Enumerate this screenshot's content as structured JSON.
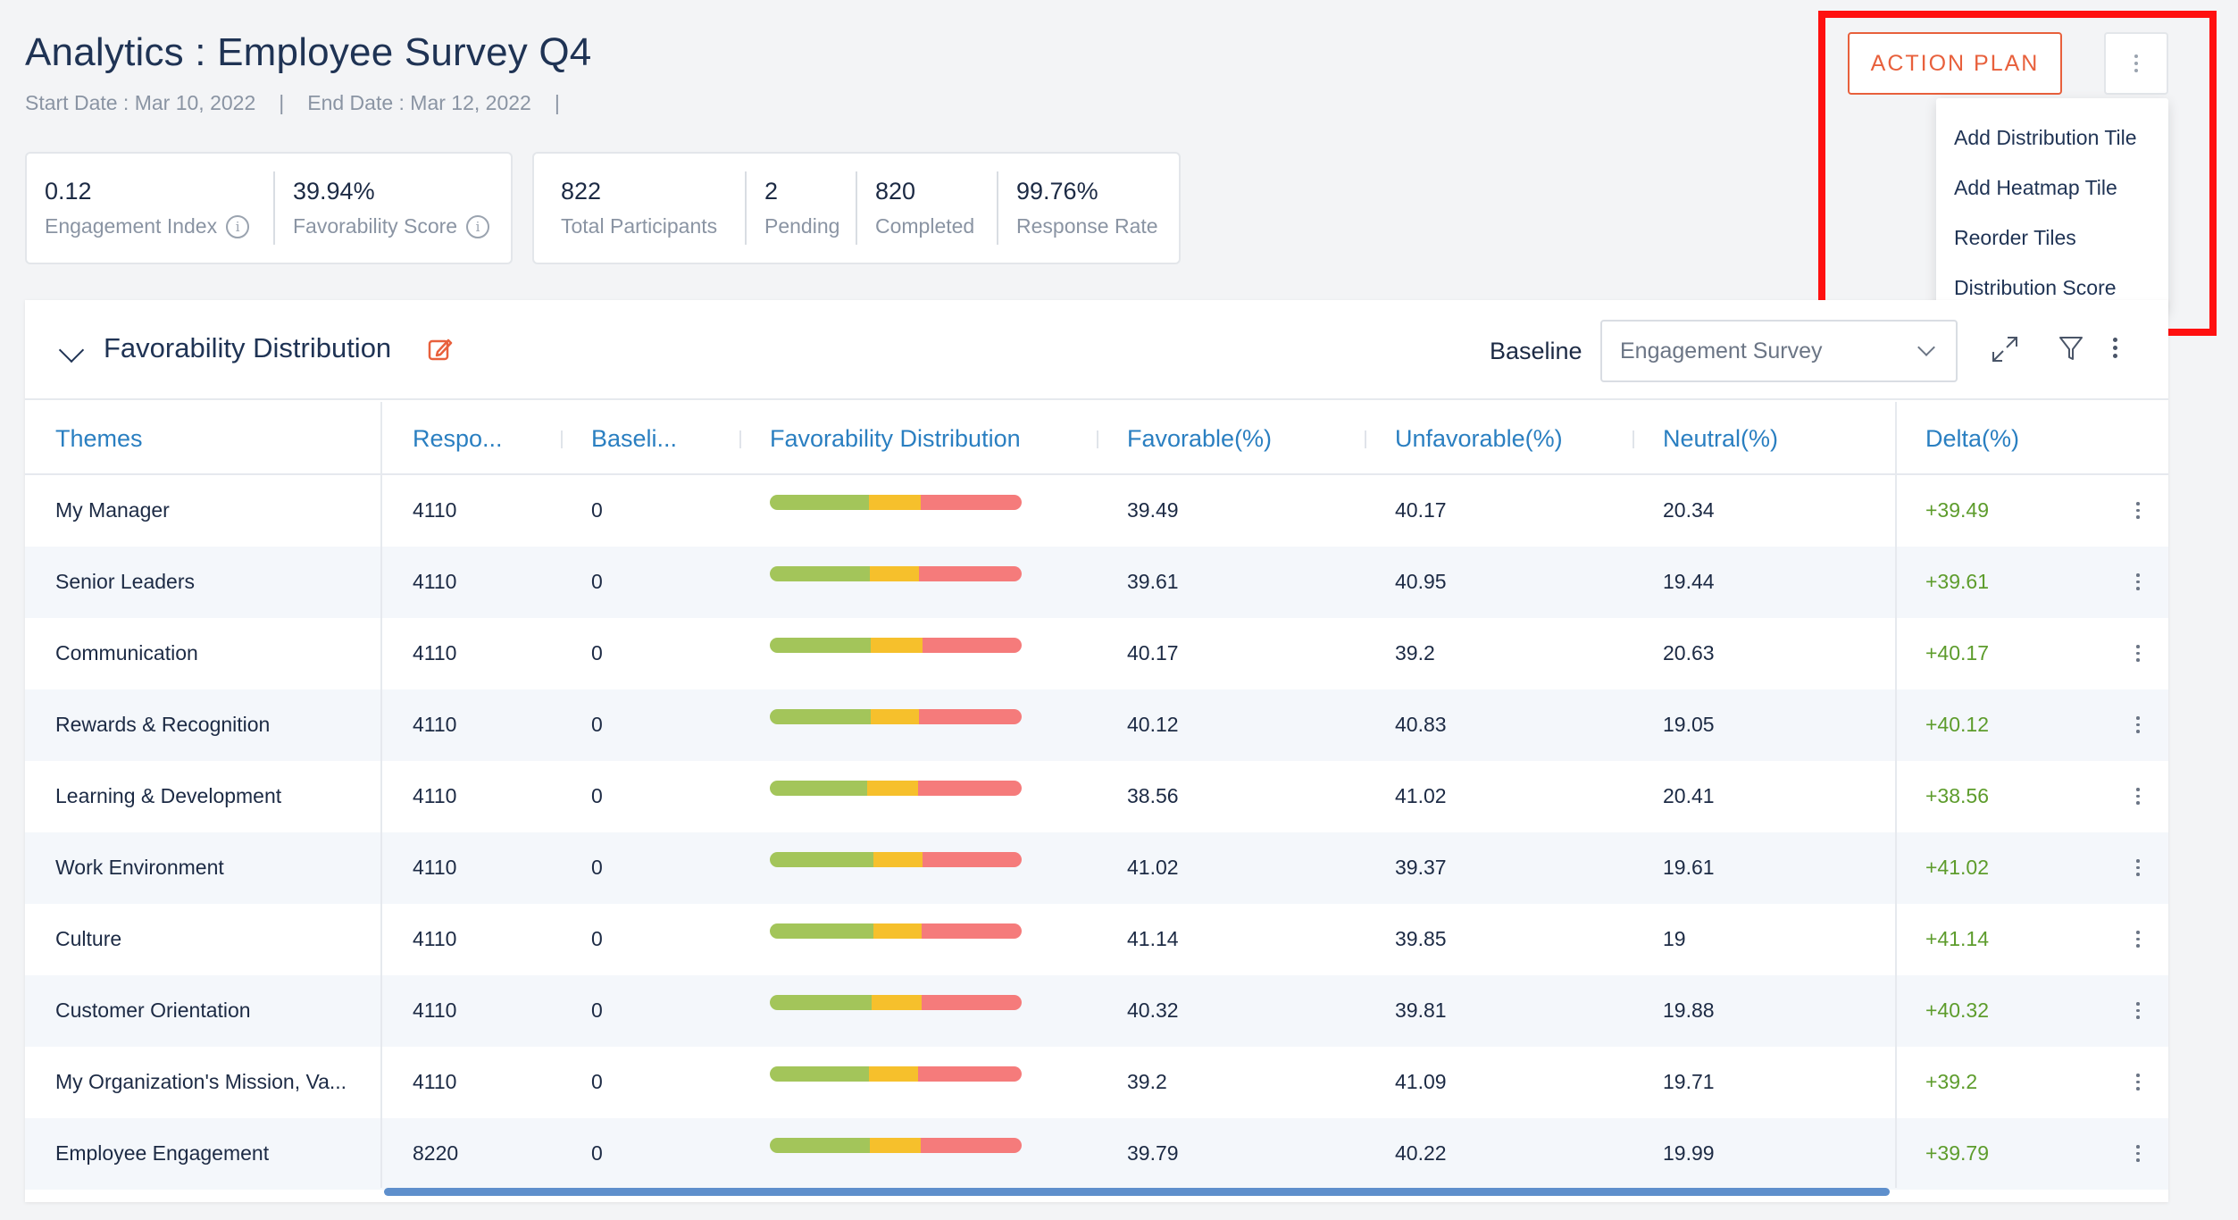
{
  "header": {
    "title": "Analytics : Employee Survey Q4",
    "start_date": "Start Date : Mar 10, 2022",
    "end_date": "End Date : Mar 12, 2022",
    "separator": "|"
  },
  "engagement_card": {
    "engagement_index_value": "0.12",
    "engagement_index_label": "Engagement Index",
    "favorability_score_value": "39.94%",
    "favorability_score_label": "Favorability Score"
  },
  "participation_card": {
    "total_participants_value": "822",
    "total_participants_label": "Total Participants",
    "pending_value": "2",
    "pending_label": "Pending",
    "completed_value": "820",
    "completed_label": "Completed",
    "response_rate_value": "99.76%",
    "response_rate_label": "Response Rate"
  },
  "toolbar": {
    "action_plan_label": "ACTION PLAN",
    "info_icon": "info-icon",
    "kebab_icon": "vertical-dots-icon"
  },
  "menu": {
    "items": [
      "Add Distribution Tile",
      "Add Heatmap Tile",
      "Reorder Tiles",
      "Distribution Score"
    ],
    "highlight_color": "#ff1010"
  },
  "panel": {
    "title": "Favorability Distribution",
    "baseline_label": "Baseline",
    "baseline_value": "Engagement Survey",
    "edit_icon": "edit-icon",
    "expand_icon": "expand-icon",
    "filter_icon": "filter-icon"
  },
  "colors": {
    "accent": "#e8603c",
    "link": "#2a7fc1",
    "favorable": "#a3c55a",
    "neutral": "#f6c02c",
    "unfavorable": "#f57b7b",
    "delta_positive": "#5d9c2c"
  },
  "table": {
    "columns": [
      "Themes",
      "Respo...",
      "Baseli...",
      "Favorability Distribution",
      "Favorable(%)",
      "Unfavorable(%)",
      "Neutral(%)",
      "Delta(%)"
    ],
    "rows": [
      {
        "theme": "My Manager",
        "responses": "4110",
        "baseline": "0",
        "favorable": "39.49",
        "unfavorable": "40.17",
        "neutral": "20.34",
        "delta": "+39.49"
      },
      {
        "theme": "Senior Leaders",
        "responses": "4110",
        "baseline": "0",
        "favorable": "39.61",
        "unfavorable": "40.95",
        "neutral": "19.44",
        "delta": "+39.61"
      },
      {
        "theme": "Communication",
        "responses": "4110",
        "baseline": "0",
        "favorable": "40.17",
        "unfavorable": "39.2",
        "neutral": "20.63",
        "delta": "+40.17"
      },
      {
        "theme": "Rewards & Recognition",
        "responses": "4110",
        "baseline": "0",
        "favorable": "40.12",
        "unfavorable": "40.83",
        "neutral": "19.05",
        "delta": "+40.12"
      },
      {
        "theme": "Learning & Development",
        "responses": "4110",
        "baseline": "0",
        "favorable": "38.56",
        "unfavorable": "41.02",
        "neutral": "20.41",
        "delta": "+38.56"
      },
      {
        "theme": "Work Environment",
        "responses": "4110",
        "baseline": "0",
        "favorable": "41.02",
        "unfavorable": "39.37",
        "neutral": "19.61",
        "delta": "+41.02"
      },
      {
        "theme": "Culture",
        "responses": "4110",
        "baseline": "0",
        "favorable": "41.14",
        "unfavorable": "39.85",
        "neutral": "19",
        "delta": "+41.14"
      },
      {
        "theme": "Customer Orientation",
        "responses": "4110",
        "baseline": "0",
        "favorable": "40.32",
        "unfavorable": "39.81",
        "neutral": "19.88",
        "delta": "+40.32"
      },
      {
        "theme": "My Organization's Mission, Va...",
        "responses": "4110",
        "baseline": "0",
        "favorable": "39.2",
        "unfavorable": "41.09",
        "neutral": "19.71",
        "delta": "+39.2"
      },
      {
        "theme": "Employee Engagement",
        "responses": "8220",
        "baseline": "0",
        "favorable": "39.79",
        "unfavorable": "40.22",
        "neutral": "19.99",
        "delta": "+39.79"
      }
    ]
  }
}
